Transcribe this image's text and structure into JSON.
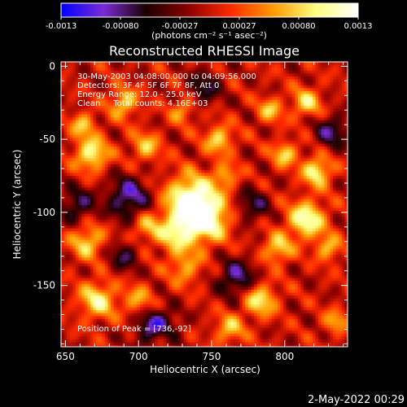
{
  "chart_data": {
    "type": "heatmap",
    "title": "Reconstructed RHESSI Image",
    "xlabel": "Heliocentric X (arcsec)",
    "ylabel": "Heliocentric Y (arcsec)",
    "xlim": [
      647,
      843
    ],
    "ylim": [
      -192,
      3
    ],
    "x_ticks": [
      650,
      700,
      750,
      800
    ],
    "y_ticks": [
      0,
      -50,
      -100,
      -150
    ],
    "colorbar": {
      "ticks": [
        "-0.0013",
        "-0.00080",
        "-0.00027",
        "0.00027",
        "0.00080",
        "0.0013"
      ],
      "range": [
        -0.0013,
        0.0013
      ],
      "unit_label": "(photons cm⁻² s⁻¹ asec⁻²)",
      "colormap": [
        "#0000ff",
        "#7a2bd6",
        "#1a0000",
        "#8b0000",
        "#ff2a00",
        "#ff9a00",
        "#ffff80",
        "#ffffff"
      ]
    },
    "annotations": [
      "30-May-2003 04:08:00.000 to 04:09:56.000",
      "Detectors: 3F 4F 5F 6F 7F 8F, Att 0",
      "Energy Range: 12.0 - 25.0 keV",
      "Clean     Total counts: 4.16E+03"
    ],
    "peak_label": "Position of Peak = [736,-92]",
    "sources": [
      {
        "x": 736,
        "y": -92,
        "amp": 0.0013,
        "sigma": 12
      },
      {
        "x": 746,
        "y": -105,
        "amp": 0.0011,
        "sigma": 11
      },
      {
        "x": 725,
        "y": -115,
        "amp": 0.0008,
        "sigma": 9
      },
      {
        "x": 732,
        "y": -138,
        "amp": 0.0006,
        "sigma": 8
      },
      {
        "x": 705,
        "y": -110,
        "amp": 0.0006,
        "sigma": 7
      },
      {
        "x": 668,
        "y": -60,
        "amp": 0.001,
        "sigma": 8
      },
      {
        "x": 662,
        "y": -40,
        "amp": 0.0007,
        "sigma": 6
      },
      {
        "x": 690,
        "y": -25,
        "amp": 0.0008,
        "sigma": 7
      },
      {
        "x": 705,
        "y": -55,
        "amp": 0.0007,
        "sigma": 7
      },
      {
        "x": 730,
        "y": -30,
        "amp": 0.0006,
        "sigma": 6
      },
      {
        "x": 755,
        "y": -50,
        "amp": 0.0008,
        "sigma": 7
      },
      {
        "x": 790,
        "y": -30,
        "amp": 0.0007,
        "sigma": 6
      },
      {
        "x": 815,
        "y": -25,
        "amp": 0.0008,
        "sigma": 7
      },
      {
        "x": 800,
        "y": -60,
        "amp": 0.0008,
        "sigma": 6
      },
      {
        "x": 822,
        "y": -72,
        "amp": 0.001,
        "sigma": 7
      },
      {
        "x": 815,
        "y": -105,
        "amp": 0.0011,
        "sigma": 9
      },
      {
        "x": 795,
        "y": -125,
        "amp": 0.0008,
        "sigma": 7
      },
      {
        "x": 830,
        "y": -125,
        "amp": 0.0007,
        "sigma": 6
      },
      {
        "x": 783,
        "y": -160,
        "amp": 0.0009,
        "sigma": 8
      },
      {
        "x": 762,
        "y": -180,
        "amp": 0.0007,
        "sigma": 7
      },
      {
        "x": 665,
        "y": -120,
        "amp": 0.0008,
        "sigma": 8
      },
      {
        "x": 672,
        "y": -160,
        "amp": 0.0009,
        "sigma": 9
      },
      {
        "x": 700,
        "y": -160,
        "amp": 0.0006,
        "sigma": 7
      },
      {
        "x": 716,
        "y": -185,
        "amp": 0.0007,
        "sigma": 6
      },
      {
        "x": 835,
        "y": -175,
        "amp": 0.0006,
        "sigma": 6
      },
      {
        "x": 760,
        "y": -75,
        "amp": 0.0006,
        "sigma": 6
      }
    ],
    "negatives": [
      {
        "x": 693,
        "y": -90,
        "amp": -0.0009,
        "sigma": 10
      },
      {
        "x": 713,
        "y": -180,
        "amp": -0.0012,
        "sigma": 9
      },
      {
        "x": 767,
        "y": -145,
        "amp": -0.0008,
        "sigma": 9
      },
      {
        "x": 832,
        "y": -45,
        "amp": -0.0007,
        "sigma": 8
      },
      {
        "x": 658,
        "y": -95,
        "amp": -0.0007,
        "sigma": 8
      },
      {
        "x": 778,
        "y": -95,
        "amp": -0.0006,
        "sigma": 8
      },
      {
        "x": 745,
        "y": -15,
        "amp": -0.0006,
        "sigma": 8
      },
      {
        "x": 690,
        "y": -130,
        "amp": -0.0006,
        "sigma": 7
      }
    ]
  },
  "footer": {
    "timestamp": "2-May-2022 00:29"
  }
}
